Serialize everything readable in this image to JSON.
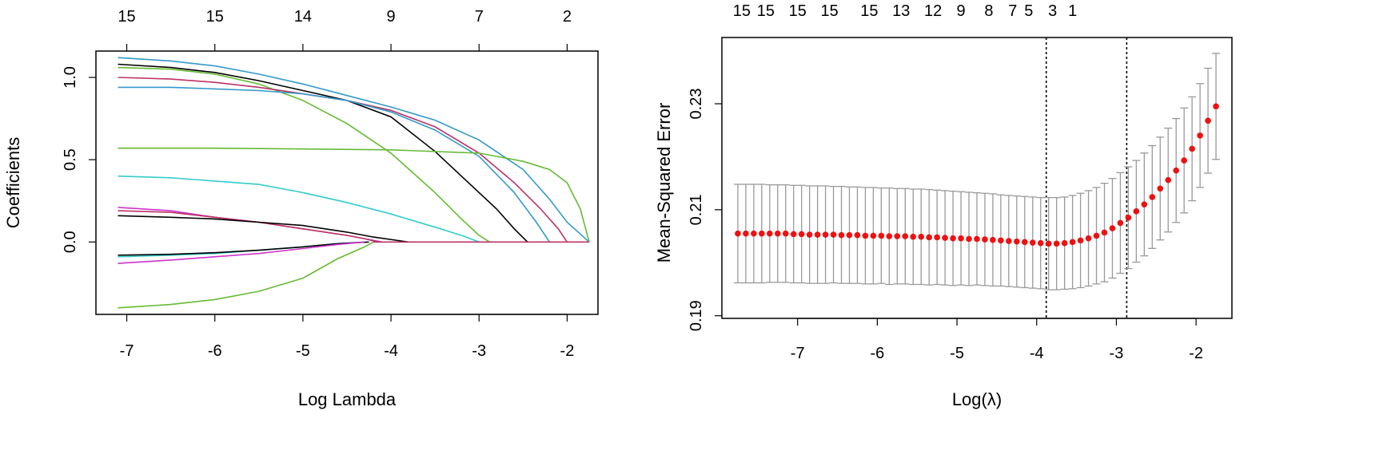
{
  "chart_data": [
    {
      "type": "line",
      "title": "",
      "xlabel": "Log Lambda",
      "ylabel": "Coefficients",
      "xlim": [
        -7.35,
        -1.65
      ],
      "ylim": [
        -0.44,
        1.16
      ],
      "xticks": [
        -7,
        -6,
        -5,
        -4,
        -3,
        -2
      ],
      "xtick_labels": [
        "-7",
        "-6",
        "-5",
        "-4",
        "-3",
        "-2"
      ],
      "yticks": [
        0.0,
        0.5,
        1.0
      ],
      "ytick_labels": [
        "0.0",
        "0.5",
        "1.0"
      ],
      "top_axis": {
        "positions": [
          -7,
          -6,
          -5,
          -4,
          -3,
          -2
        ],
        "labels": [
          "15",
          "15",
          "14",
          "9",
          "7",
          "2"
        ]
      },
      "x_range": [
        -7.1,
        -1.75
      ],
      "series": [
        {
          "color": "#3399cc",
          "x": [
            -7.1,
            -6.5,
            -6.0,
            -5.5,
            -5.0,
            -4.5,
            -4.0,
            -3.5,
            -3.0,
            -2.5,
            -2.2,
            -2.0,
            -1.75
          ],
          "y": [
            1.12,
            1.1,
            1.07,
            1.02,
            0.96,
            0.89,
            0.82,
            0.74,
            0.62,
            0.44,
            0.26,
            0.12,
            0.0
          ]
        },
        {
          "color": "#000000",
          "x": [
            -7.1,
            -6.5,
            -6.0,
            -5.5,
            -5.0,
            -4.5,
            -4.0,
            -3.5,
            -3.0,
            -2.8,
            -2.6,
            -2.45
          ],
          "y": [
            1.08,
            1.06,
            1.03,
            0.98,
            0.92,
            0.86,
            0.76,
            0.55,
            0.3,
            0.2,
            0.08,
            0.0
          ]
        },
        {
          "color": "#66bb33",
          "x": [
            -7.1,
            -6.5,
            -6.0,
            -5.5,
            -5.0,
            -4.5,
            -4.0,
            -3.5,
            -3.2,
            -3.0,
            -2.88
          ],
          "y": [
            1.06,
            1.05,
            1.02,
            0.96,
            0.86,
            0.72,
            0.54,
            0.3,
            0.14,
            0.04,
            0.0
          ]
        },
        {
          "color": "#bb3366",
          "x": [
            -7.1,
            -6.5,
            -6.0,
            -5.5,
            -5.0,
            -4.5,
            -4.0,
            -3.5,
            -3.0,
            -2.6,
            -2.3,
            -2.1,
            -2.0
          ],
          "y": [
            1.0,
            0.99,
            0.97,
            0.94,
            0.9,
            0.86,
            0.8,
            0.7,
            0.54,
            0.36,
            0.2,
            0.08,
            0.0
          ]
        },
        {
          "color": "#3399cc",
          "x": [
            -7.1,
            -6.5,
            -6.0,
            -5.5,
            -5.0,
            -4.5,
            -4.0,
            -3.5,
            -3.0,
            -2.6,
            -2.35,
            -2.2
          ],
          "y": [
            0.94,
            0.94,
            0.93,
            0.92,
            0.9,
            0.86,
            0.79,
            0.68,
            0.52,
            0.3,
            0.12,
            0.0
          ]
        },
        {
          "color": "#66bb33",
          "x": [
            -7.1,
            -6.0,
            -5.0,
            -4.0,
            -3.0,
            -2.5,
            -2.2,
            -2.0,
            -1.85,
            -1.75
          ],
          "y": [
            0.57,
            0.57,
            0.565,
            0.56,
            0.54,
            0.49,
            0.44,
            0.36,
            0.2,
            0.0
          ]
        },
        {
          "color": "#33cccc",
          "x": [
            -7.1,
            -6.5,
            -6.0,
            -5.5,
            -5.0,
            -4.5,
            -4.0,
            -3.5,
            -3.2,
            -3.0
          ],
          "y": [
            0.4,
            0.39,
            0.37,
            0.35,
            0.3,
            0.24,
            0.17,
            0.09,
            0.04,
            0.0
          ]
        },
        {
          "color": "#cc33cc",
          "x": [
            -7.1,
            -6.5,
            -6.0,
            -5.5,
            -5.0,
            -4.5,
            -4.3,
            -4.1
          ],
          "y": [
            0.21,
            0.19,
            0.15,
            0.12,
            0.08,
            0.04,
            0.02,
            0.0
          ]
        },
        {
          "color": "#bb3366",
          "x": [
            -7.1,
            -6.5,
            -6.0,
            -5.5,
            -5.0,
            -4.5,
            -4.3,
            -4.15
          ],
          "y": [
            0.19,
            0.18,
            0.15,
            0.12,
            0.08,
            0.04,
            0.02,
            0.0
          ]
        },
        {
          "color": "#000000",
          "x": [
            -7.1,
            -6.5,
            -6.0,
            -5.5,
            -5.0,
            -4.5,
            -4.2,
            -3.8
          ],
          "y": [
            0.16,
            0.15,
            0.14,
            0.12,
            0.1,
            0.06,
            0.03,
            0.0
          ]
        },
        {
          "color": "#33cccc",
          "x": [
            -7.1,
            -6.5,
            -6.0,
            -5.5,
            -5.0,
            -4.6,
            -4.3
          ],
          "y": [
            -0.09,
            -0.08,
            -0.07,
            -0.05,
            -0.03,
            -0.01,
            0.0
          ]
        },
        {
          "color": "#000000",
          "x": [
            -7.1,
            -6.5,
            -6.0,
            -5.5,
            -5.0,
            -4.6,
            -4.25
          ],
          "y": [
            -0.08,
            -0.075,
            -0.065,
            -0.05,
            -0.03,
            -0.01,
            0.0
          ]
        },
        {
          "color": "#cc33cc",
          "x": [
            -7.1,
            -6.5,
            -6.0,
            -5.5,
            -5.0,
            -4.6,
            -4.3
          ],
          "y": [
            -0.13,
            -0.11,
            -0.09,
            -0.07,
            -0.04,
            -0.015,
            0.0
          ]
        },
        {
          "color": "#66bb33",
          "x": [
            -7.1,
            -6.5,
            -6.0,
            -5.5,
            -5.0,
            -4.6,
            -4.3,
            -4.2
          ],
          "y": [
            -0.4,
            -0.38,
            -0.35,
            -0.3,
            -0.22,
            -0.1,
            -0.03,
            0.0
          ]
        },
        {
          "color": "#bb3366",
          "x": [
            -4.2,
            -1.75
          ],
          "y": [
            0.0,
            0.0
          ]
        }
      ]
    },
    {
      "type": "scatter",
      "title": "",
      "xlabel": "Log(λ)",
      "ylabel": "Mean-Squared Error",
      "xlim": [
        -7.95,
        -1.55
      ],
      "ylim": [
        0.1895,
        0.2425
      ],
      "xticks": [
        -7,
        -6,
        -5,
        -4,
        -3,
        -2
      ],
      "xtick_labels": [
        "-7",
        "-6",
        "-5",
        "-4",
        "-3",
        "-2"
      ],
      "yticks": [
        0.19,
        0.21,
        0.23
      ],
      "ytick_labels": [
        "0.19",
        "0.21",
        "0.23"
      ],
      "top_axis": {
        "positions": [
          -7.7,
          -7.4,
          -7.0,
          -6.6,
          -6.1,
          -5.7,
          -5.3,
          -4.95,
          -4.6,
          -4.3,
          -4.1,
          -3.8,
          -3.55
        ],
        "labels": [
          "15",
          "15",
          "15",
          "15",
          "15",
          "13",
          "12",
          "9",
          "8",
          "7",
          "5",
          "3",
          "1"
        ]
      },
      "vlines": [
        -3.88,
        -2.87
      ],
      "point_color": "#ee1111",
      "errorbar_color": "#999999",
      "x": [
        -7.75,
        -7.65,
        -7.55,
        -7.45,
        -7.35,
        -7.25,
        -7.15,
        -7.05,
        -6.95,
        -6.85,
        -6.75,
        -6.65,
        -6.55,
        -6.45,
        -6.35,
        -6.25,
        -6.15,
        -6.05,
        -5.95,
        -5.85,
        -5.75,
        -5.65,
        -5.55,
        -5.45,
        -5.35,
        -5.25,
        -5.15,
        -5.05,
        -4.95,
        -4.85,
        -4.75,
        -4.65,
        -4.55,
        -4.45,
        -4.35,
        -4.25,
        -4.15,
        -4.05,
        -3.95,
        -3.85,
        -3.75,
        -3.65,
        -3.55,
        -3.45,
        -3.35,
        -3.25,
        -3.15,
        -3.05,
        -2.95,
        -2.85,
        -2.75,
        -2.65,
        -2.55,
        -2.45,
        -2.35,
        -2.25,
        -2.15,
        -2.05,
        -1.95,
        -1.85,
        -1.75
      ],
      "mse": [
        0.2055,
        0.2055,
        0.2055,
        0.2055,
        0.2055,
        0.2055,
        0.2055,
        0.2054,
        0.2054,
        0.2053,
        0.2053,
        0.2053,
        0.2053,
        0.2052,
        0.2052,
        0.2052,
        0.2051,
        0.2051,
        0.2051,
        0.205,
        0.205,
        0.205,
        0.2049,
        0.2049,
        0.2048,
        0.2048,
        0.2047,
        0.2046,
        0.2046,
        0.2045,
        0.2045,
        0.2044,
        0.2043,
        0.2042,
        0.2041,
        0.204,
        0.2039,
        0.2038,
        0.2037,
        0.2036,
        0.2036,
        0.2037,
        0.2039,
        0.2042,
        0.2046,
        0.2051,
        0.2057,
        0.2065,
        0.2075,
        0.2085,
        0.2097,
        0.211,
        0.2124,
        0.214,
        0.2156,
        0.2174,
        0.2193,
        0.2215,
        0.224,
        0.2268,
        0.2295
      ],
      "upper": [
        0.2148,
        0.2148,
        0.2148,
        0.2148,
        0.2147,
        0.2147,
        0.2147,
        0.2146,
        0.2146,
        0.2145,
        0.2145,
        0.2145,
        0.2144,
        0.2144,
        0.2143,
        0.2143,
        0.2142,
        0.2142,
        0.2141,
        0.2141,
        0.214,
        0.214,
        0.2139,
        0.2139,
        0.2138,
        0.2137,
        0.2136,
        0.2135,
        0.2134,
        0.2133,
        0.2132,
        0.2131,
        0.213,
        0.2128,
        0.2127,
        0.2126,
        0.2125,
        0.2124,
        0.2123,
        0.2123,
        0.2123,
        0.2124,
        0.2127,
        0.2131,
        0.2136,
        0.2142,
        0.215,
        0.2159,
        0.217,
        0.2181,
        0.2193,
        0.2207,
        0.2221,
        0.2237,
        0.2254,
        0.2272,
        0.2292,
        0.2313,
        0.2338,
        0.2367,
        0.2395
      ],
      "lower": [
        0.1962,
        0.1962,
        0.1962,
        0.1962,
        0.1963,
        0.1963,
        0.1963,
        0.1962,
        0.1962,
        0.1961,
        0.1961,
        0.1961,
        0.1962,
        0.1961,
        0.1961,
        0.1961,
        0.196,
        0.196,
        0.1961,
        0.1959,
        0.196,
        0.196,
        0.1959,
        0.1959,
        0.1958,
        0.1959,
        0.1958,
        0.1957,
        0.1958,
        0.1957,
        0.1958,
        0.1957,
        0.1956,
        0.1956,
        0.1955,
        0.1954,
        0.1953,
        0.1952,
        0.1951,
        0.1949,
        0.1949,
        0.195,
        0.1951,
        0.1953,
        0.1956,
        0.196,
        0.1964,
        0.1971,
        0.198,
        0.1989,
        0.2001,
        0.2013,
        0.2027,
        0.2043,
        0.2058,
        0.2076,
        0.2094,
        0.2117,
        0.2142,
        0.2169,
        0.2195
      ]
    }
  ]
}
